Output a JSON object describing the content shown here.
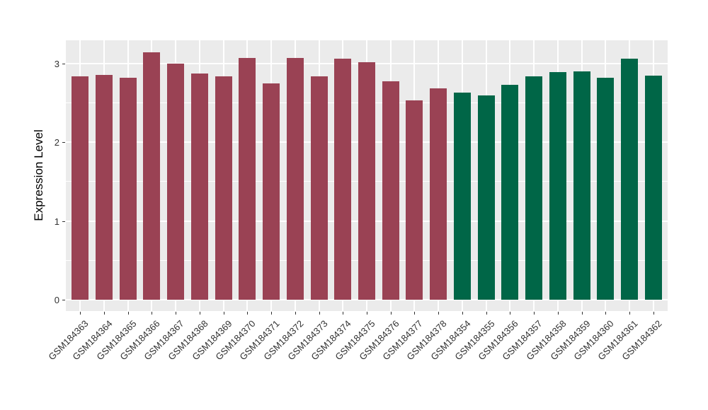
{
  "chart_data": {
    "type": "bar",
    "title": "",
    "xlabel": "",
    "ylabel": "Expression Level",
    "categories": [
      "GSM184363",
      "GSM184364",
      "GSM184365",
      "GSM184366",
      "GSM184367",
      "GSM184368",
      "GSM184369",
      "GSM184370",
      "GSM184371",
      "GSM184372",
      "GSM184373",
      "GSM184374",
      "GSM184375",
      "GSM184376",
      "GSM184377",
      "GSM184378",
      "GSM184354",
      "GSM184355",
      "GSM184356",
      "GSM184357",
      "GSM184358",
      "GSM184359",
      "GSM184360",
      "GSM184361",
      "GSM184362"
    ],
    "values": [
      2.83,
      2.85,
      2.82,
      3.14,
      3.0,
      2.87,
      2.83,
      3.07,
      2.74,
      3.07,
      2.83,
      3.06,
      3.01,
      2.77,
      2.53,
      2.68,
      2.63,
      2.59,
      2.73,
      2.83,
      2.89,
      2.9,
      2.82,
      3.06,
      2.84
    ],
    "bar_colors": [
      "#9A4254",
      "#9A4254",
      "#9A4254",
      "#9A4254",
      "#9A4254",
      "#9A4254",
      "#9A4254",
      "#9A4254",
      "#9A4254",
      "#9A4254",
      "#9A4254",
      "#9A4254",
      "#9A4254",
      "#9A4254",
      "#9A4254",
      "#9A4254",
      "#006647",
      "#006647",
      "#006647",
      "#006647",
      "#006647",
      "#006647",
      "#006647",
      "#006647",
      "#006647"
    ],
    "yticks": [
      0,
      1,
      2,
      3
    ],
    "minor_yticks": [
      0.5,
      1.5,
      2.5
    ],
    "ylim": [
      0,
      3.3
    ],
    "grid": true,
    "legend_position": "none",
    "panel_background": "#EBEBEB",
    "gridline_color": "#FFFFFF"
  }
}
